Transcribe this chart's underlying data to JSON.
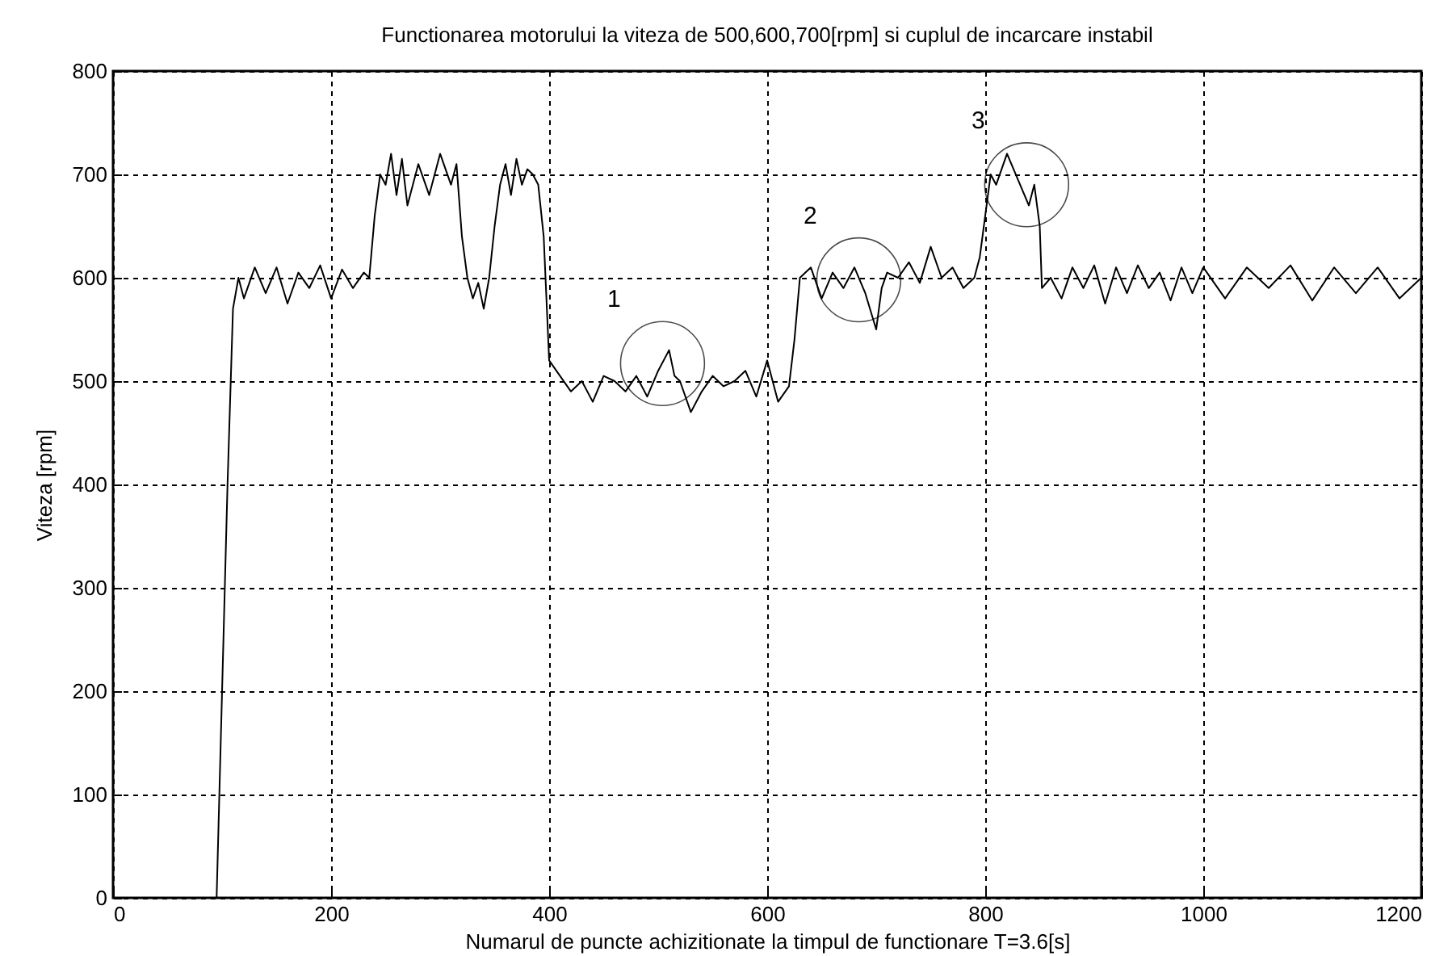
{
  "chart_data": {
    "type": "line",
    "title": "Functionarea motorului la viteza de 500,600,700[rpm] si cuplul de incarcare instabil",
    "xlabel": "Numarul de puncte achizitionate la timpul de functionare T=3.6[s]",
    "ylabel": "Viteza [rpm]",
    "x": [
      95,
      100,
      105,
      110,
      115,
      120,
      130,
      140,
      150,
      160,
      170,
      180,
      190,
      200,
      210,
      220,
      230,
      235,
      240,
      245,
      250,
      255,
      260,
      265,
      270,
      280,
      290,
      300,
      310,
      315,
      320,
      325,
      330,
      335,
      340,
      345,
      350,
      355,
      360,
      365,
      370,
      375,
      380,
      385,
      390,
      395,
      400,
      410,
      420,
      430,
      440,
      450,
      460,
      470,
      480,
      490,
      500,
      510,
      515,
      520,
      530,
      540,
      550,
      560,
      570,
      580,
      590,
      600,
      610,
      620,
      625,
      630,
      640,
      650,
      660,
      670,
      680,
      690,
      700,
      705,
      710,
      720,
      730,
      740,
      750,
      760,
      770,
      780,
      790,
      795,
      800,
      805,
      810,
      820,
      830,
      840,
      845,
      850,
      852,
      860,
      870,
      880,
      890,
      900,
      910,
      920,
      930,
      940,
      950,
      960,
      970,
      980,
      990,
      1000,
      1020,
      1040,
      1060,
      1080,
      1100,
      1120,
      1140,
      1160,
      1180,
      1200
    ],
    "series": [
      {
        "color": "#000000",
        "values": [
          0,
          200,
          400,
          570,
          600,
          580,
          610,
          585,
          610,
          575,
          605,
          590,
          612,
          580,
          608,
          590,
          605,
          600,
          660,
          700,
          690,
          720,
          680,
          715,
          670,
          710,
          680,
          720,
          690,
          710,
          640,
          600,
          580,
          595,
          570,
          600,
          650,
          690,
          710,
          680,
          715,
          690,
          705,
          700,
          690,
          640,
          520,
          505,
          490,
          500,
          480,
          505,
          500,
          490,
          505,
          485,
          510,
          530,
          505,
          500,
          470,
          490,
          505,
          495,
          500,
          510,
          485,
          520,
          480,
          495,
          540,
          600,
          610,
          580,
          605,
          590,
          610,
          585,
          550,
          590,
          605,
          600,
          615,
          595,
          630,
          600,
          610,
          590,
          600,
          620,
          660,
          700,
          690,
          720,
          695,
          670,
          690,
          650,
          590,
          600,
          580,
          610,
          590,
          612,
          575,
          610,
          585,
          612,
          590,
          605,
          578,
          610,
          585,
          610,
          580,
          610,
          590,
          612,
          578,
          610,
          585,
          610,
          580,
          600
        ]
      }
    ],
    "annotations": [
      {
        "text": "1",
        "x": 504,
        "y": 517
      },
      {
        "text": "2",
        "x": 684,
        "y": 598
      },
      {
        "text": "3",
        "x": 838,
        "y": 690
      }
    ],
    "xlim": [
      0,
      1200
    ],
    "ylim": [
      0,
      800
    ],
    "xticks": [
      0,
      200,
      400,
      600,
      800,
      1000,
      1200
    ],
    "yticks": [
      0,
      100,
      200,
      300,
      400,
      500,
      600,
      700,
      800
    ],
    "grid": true,
    "line_style": "solid"
  }
}
